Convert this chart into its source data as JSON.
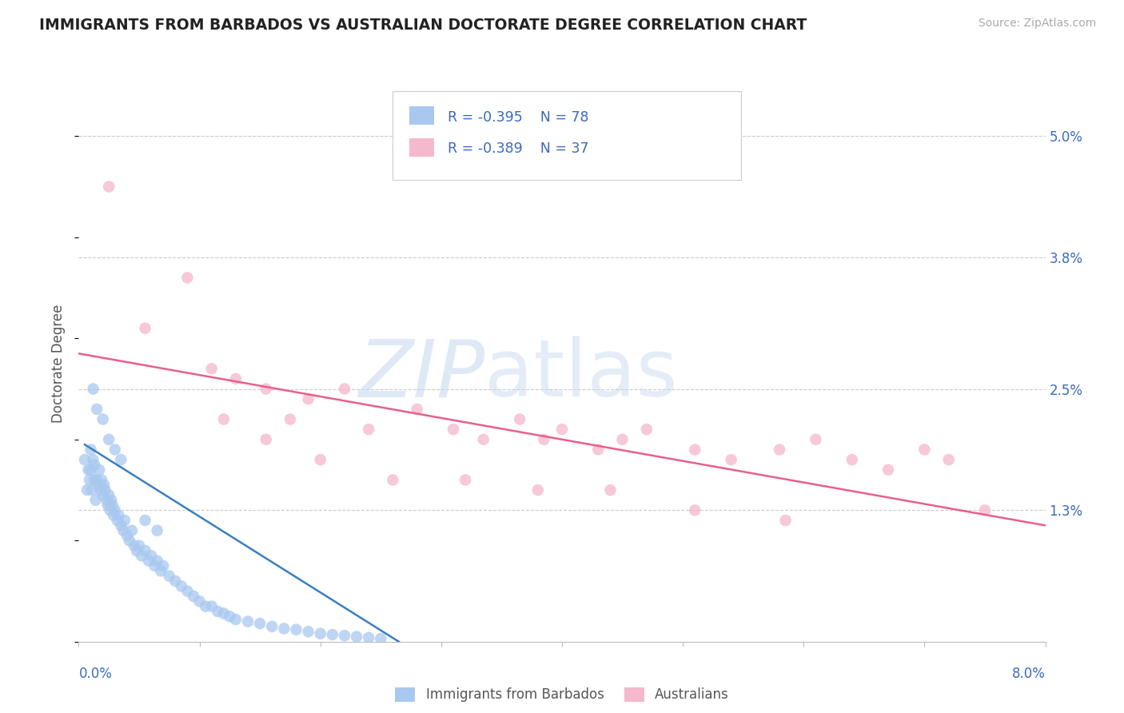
{
  "title": "IMMIGRANTS FROM BARBADOS VS AUSTRALIAN DOCTORATE DEGREE CORRELATION CHART",
  "source": "Source: ZipAtlas.com",
  "ylabel": "Doctorate Degree",
  "ytick_values": [
    1.3,
    2.5,
    3.8,
    5.0
  ],
  "xlim": [
    0.0,
    8.0
  ],
  "ylim": [
    0.0,
    5.5
  ],
  "legend_r1": "R = -0.395",
  "legend_n1": "N = 78",
  "legend_r2": "R = -0.389",
  "legend_n2": "N = 37",
  "legend_label1": "Immigrants from Barbados",
  "legend_label2": "Australians",
  "blue_color": "#a8c8f0",
  "pink_color": "#f5b8cc",
  "blue_line_color": "#3a7fc1",
  "pink_line_color": "#e8608a",
  "text_color": "#3a6abf",
  "blue_scatter_x": [
    0.05,
    0.07,
    0.08,
    0.09,
    0.1,
    0.1,
    0.11,
    0.12,
    0.13,
    0.13,
    0.14,
    0.15,
    0.16,
    0.17,
    0.18,
    0.19,
    0.2,
    0.21,
    0.22,
    0.23,
    0.24,
    0.25,
    0.26,
    0.27,
    0.28,
    0.29,
    0.3,
    0.32,
    0.33,
    0.35,
    0.37,
    0.38,
    0.4,
    0.42,
    0.44,
    0.46,
    0.48,
    0.5,
    0.52,
    0.55,
    0.58,
    0.6,
    0.63,
    0.65,
    0.68,
    0.7,
    0.75,
    0.8,
    0.85,
    0.9,
    0.95,
    1.0,
    1.05,
    1.1,
    1.15,
    1.2,
    1.25,
    1.3,
    1.4,
    1.5,
    1.6,
    1.7,
    1.8,
    1.9,
    2.0,
    2.1,
    2.2,
    2.3,
    2.4,
    2.5,
    0.12,
    0.15,
    0.2,
    0.25,
    0.3,
    0.35,
    0.55,
    0.65
  ],
  "blue_scatter_y": [
    1.8,
    1.5,
    1.7,
    1.6,
    1.9,
    1.7,
    1.5,
    1.8,
    1.6,
    1.75,
    1.4,
    1.6,
    1.55,
    1.7,
    1.5,
    1.6,
    1.45,
    1.55,
    1.5,
    1.4,
    1.35,
    1.45,
    1.3,
    1.4,
    1.35,
    1.25,
    1.3,
    1.2,
    1.25,
    1.15,
    1.1,
    1.2,
    1.05,
    1.0,
    1.1,
    0.95,
    0.9,
    0.95,
    0.85,
    0.9,
    0.8,
    0.85,
    0.75,
    0.8,
    0.7,
    0.75,
    0.65,
    0.6,
    0.55,
    0.5,
    0.45,
    0.4,
    0.35,
    0.35,
    0.3,
    0.28,
    0.25,
    0.22,
    0.2,
    0.18,
    0.15,
    0.13,
    0.12,
    0.1,
    0.08,
    0.07,
    0.06,
    0.05,
    0.04,
    0.03,
    2.5,
    2.3,
    2.2,
    2.0,
    1.9,
    1.8,
    1.2,
    1.1
  ],
  "pink_scatter_x": [
    0.25,
    0.55,
    0.9,
    1.1,
    1.3,
    1.55,
    1.75,
    1.9,
    2.2,
    2.4,
    2.8,
    3.1,
    3.35,
    3.65,
    3.85,
    4.0,
    4.3,
    4.5,
    4.7,
    5.1,
    5.4,
    5.8,
    6.1,
    6.4,
    6.7,
    7.0,
    7.2,
    7.5,
    1.2,
    1.55,
    2.0,
    2.6,
    3.2,
    3.8,
    4.4,
    5.1,
    5.85
  ],
  "pink_scatter_y": [
    4.5,
    3.1,
    3.6,
    2.7,
    2.6,
    2.5,
    2.2,
    2.4,
    2.5,
    2.1,
    2.3,
    2.1,
    2.0,
    2.2,
    2.0,
    2.1,
    1.9,
    2.0,
    2.1,
    1.9,
    1.8,
    1.9,
    2.0,
    1.8,
    1.7,
    1.9,
    1.8,
    1.3,
    2.2,
    2.0,
    1.8,
    1.6,
    1.6,
    1.5,
    1.5,
    1.3,
    1.2
  ],
  "blue_line_x": [
    0.05,
    2.65
  ],
  "blue_line_y": [
    1.95,
    0.0
  ],
  "pink_line_x": [
    0.0,
    8.0
  ],
  "pink_line_y": [
    2.85,
    1.15
  ]
}
